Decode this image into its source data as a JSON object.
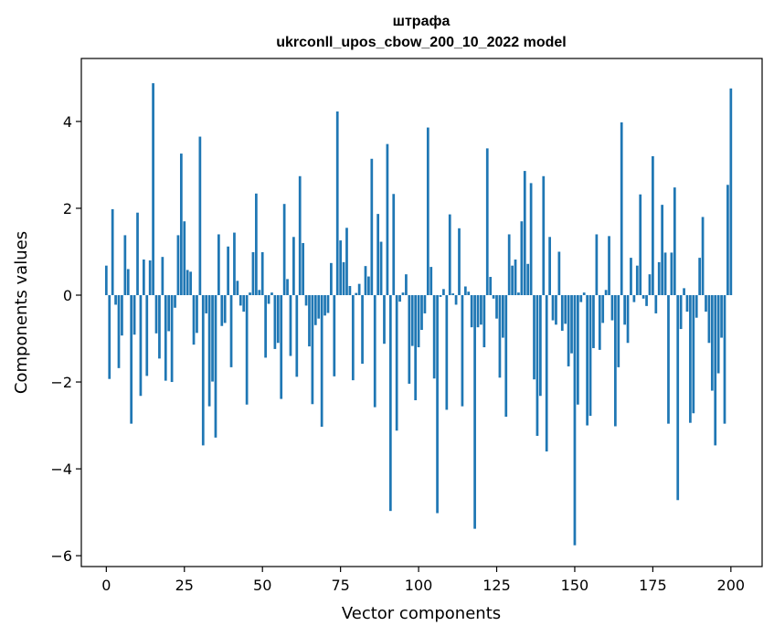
{
  "chart_data": {
    "type": "bar",
    "title": "штрафа",
    "subtitle": "ukrconll_upos_cbow_200_10_2022 model",
    "xlabel": "Vector components",
    "ylabel": "Components values",
    "xlim": [
      -8,
      210
    ],
    "ylim": [
      -6.25,
      5.45
    ],
    "xticks": [
      0,
      25,
      50,
      75,
      100,
      125,
      150,
      175,
      200
    ],
    "yticks": [
      -6,
      -4,
      -2,
      0,
      2,
      4
    ],
    "ytick_labels": [
      "−6",
      "−4",
      "−2",
      "0",
      "2",
      "4"
    ],
    "grid": false,
    "bar_color": "#1f77b4",
    "values": [
      0.68,
      -1.93,
      1.98,
      -0.22,
      -1.68,
      -0.93,
      1.38,
      0.6,
      -2.96,
      -0.91,
      1.9,
      -2.32,
      0.82,
      -1.86,
      0.8,
      4.88,
      -0.88,
      -1.46,
      0.88,
      -1.97,
      -0.83,
      -2.0,
      -0.29,
      1.38,
      3.26,
      1.7,
      0.58,
      0.54,
      -1.14,
      -0.87,
      3.65,
      -3.46,
      -0.42,
      -2.56,
      -1.99,
      -3.28,
      1.4,
      -0.71,
      -0.64,
      1.12,
      -1.66,
      1.44,
      0.33,
      -0.24,
      -0.38,
      -2.52,
      0.06,
      0.99,
      2.34,
      0.12,
      0.99,
      -1.44,
      -0.2,
      0.06,
      -1.24,
      -1.1,
      -2.39,
      2.1,
      0.37,
      -1.4,
      1.34,
      -1.88,
      2.74,
      1.2,
      -0.24,
      -1.18,
      -2.51,
      -0.69,
      -0.54,
      -3.03,
      -0.47,
      -0.41,
      0.74,
      -1.87,
      4.23,
      1.26,
      0.76,
      1.55,
      0.21,
      -1.96,
      0.05,
      0.26,
      -1.58,
      0.67,
      0.43,
      3.14,
      -2.58,
      1.87,
      1.23,
      -1.12,
      3.48,
      -4.97,
      2.33,
      -3.12,
      -0.15,
      0.06,
      0.48,
      -2.04,
      -1.17,
      -2.42,
      -1.2,
      -0.8,
      -0.42,
      3.86,
      0.65,
      -1.92,
      -5.02,
      -0.04,
      0.14,
      -2.64,
      1.86,
      0.04,
      -0.22,
      1.54,
      -2.56,
      0.2,
      0.08,
      -0.74,
      -5.38,
      -0.74,
      -0.68,
      -1.2,
      3.38,
      0.42,
      -0.08,
      -0.54,
      -1.9,
      -0.98,
      -2.8,
      1.4,
      0.68,
      0.82,
      0.06,
      1.7,
      2.86,
      0.72,
      2.58,
      -1.94,
      -3.24,
      -2.32,
      2.74,
      -3.6,
      1.34,
      -0.58,
      -0.68,
      1.0,
      -0.82,
      -0.66,
      -1.64,
      -1.34,
      -5.76,
      -2.52,
      -0.16,
      0.06,
      -3.0,
      -2.78,
      -1.22,
      1.4,
      -1.26,
      -0.64,
      0.12,
      1.36,
      -0.58,
      -3.02,
      -1.66,
      3.98,
      -0.68,
      -1.1,
      0.86,
      -0.16,
      0.68,
      2.32,
      -0.08,
      -0.25,
      0.48,
      3.2,
      -0.42,
      0.76,
      2.08,
      0.98,
      -2.96,
      0.98,
      2.48,
      -4.72,
      -0.78,
      0.16,
      -0.38,
      -2.94,
      -2.72,
      -0.52,
      0.86,
      1.8,
      -0.38,
      -1.1,
      -2.2,
      -3.46,
      -1.8,
      -0.98,
      -2.96,
      2.54,
      4.76
    ]
  }
}
